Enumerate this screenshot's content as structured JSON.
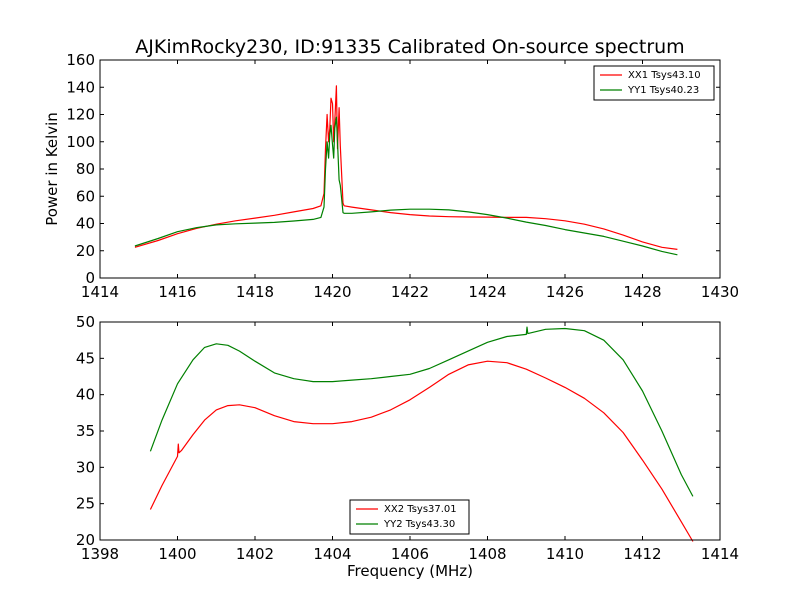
{
  "figure_title": "AJKimRocky230, ID:91335 Calibrated On-source spectrum",
  "chart_data": [
    {
      "type": "line",
      "title": "AJKimRocky230, ID:91335 Calibrated On-source spectrum",
      "xlabel": "",
      "ylabel": "Power in Kelvin",
      "xlim": [
        1414,
        1430
      ],
      "ylim": [
        0,
        160
      ],
      "xticks": [
        1414,
        1416,
        1418,
        1420,
        1422,
        1424,
        1426,
        1428,
        1430
      ],
      "yticks": [
        0,
        20,
        40,
        60,
        80,
        100,
        120,
        140,
        160
      ],
      "legend_position": "top-right",
      "grid": false,
      "series": [
        {
          "name": "XX1 Tsys43.10",
          "color": "#ff0000",
          "x": [
            1414.9,
            1415.5,
            1416.0,
            1416.5,
            1417.0,
            1417.5,
            1418.0,
            1418.5,
            1419.0,
            1419.5,
            1419.7,
            1419.78,
            1419.82,
            1419.86,
            1419.9,
            1419.93,
            1419.96,
            1420.0,
            1420.03,
            1420.06,
            1420.1,
            1420.13,
            1420.17,
            1420.2,
            1420.23,
            1420.27,
            1420.3,
            1420.5,
            1421.0,
            1421.5,
            1422.0,
            1422.5,
            1423.0,
            1423.5,
            1424.0,
            1424.5,
            1425.0,
            1425.5,
            1426.0,
            1426.5,
            1427.0,
            1427.5,
            1428.0,
            1428.5,
            1428.9
          ],
          "y": [
            22.5,
            27.5,
            32.5,
            36.5,
            39.5,
            42.0,
            44.0,
            46.0,
            48.5,
            51.0,
            53.0,
            62.0,
            95.0,
            120.0,
            100.0,
            110.0,
            132.0,
            128.0,
            100.0,
            115.0,
            141.0,
            95.0,
            125.0,
            97.0,
            80.0,
            55.0,
            53.0,
            52.0,
            50.0,
            48.0,
            46.5,
            45.5,
            45.0,
            44.8,
            44.7,
            44.5,
            44.5,
            43.5,
            42.0,
            39.5,
            36.0,
            31.5,
            26.5,
            22.5,
            21.0
          ]
        },
        {
          "name": "YY1 Tsys40.23",
          "color": "#008000",
          "x": [
            1414.9,
            1415.5,
            1416.0,
            1416.5,
            1417.0,
            1417.5,
            1418.0,
            1418.5,
            1419.0,
            1419.5,
            1419.7,
            1419.78,
            1419.82,
            1419.86,
            1419.9,
            1419.93,
            1419.96,
            1420.0,
            1420.03,
            1420.06,
            1420.1,
            1420.13,
            1420.17,
            1420.2,
            1420.23,
            1420.27,
            1420.3,
            1420.5,
            1421.0,
            1421.5,
            1422.0,
            1422.5,
            1423.0,
            1423.5,
            1424.0,
            1424.5,
            1425.0,
            1425.5,
            1426.0,
            1426.5,
            1427.0,
            1427.5,
            1428.0,
            1428.5,
            1428.9
          ],
          "y": [
            23.5,
            29.0,
            34.0,
            37.0,
            39.0,
            39.8,
            40.3,
            40.8,
            41.8,
            43.0,
            44.5,
            52.0,
            80.0,
            100.0,
            88.0,
            105.0,
            112.0,
            98.0,
            88.0,
            110.0,
            118.0,
            100.0,
            72.0,
            68.0,
            60.0,
            48.0,
            47.5,
            47.5,
            48.5,
            49.8,
            50.5,
            50.5,
            50.0,
            48.5,
            46.5,
            44.0,
            41.0,
            38.5,
            35.5,
            33.0,
            30.5,
            27.0,
            23.5,
            19.5,
            17.0
          ]
        }
      ]
    },
    {
      "type": "line",
      "title": "",
      "xlabel": "Frequency (MHz)",
      "ylabel": "",
      "xlim": [
        1398,
        1414
      ],
      "ylim": [
        20,
        50
      ],
      "xticks": [
        1398,
        1400,
        1402,
        1404,
        1406,
        1408,
        1410,
        1412,
        1414
      ],
      "yticks": [
        20,
        25,
        30,
        35,
        40,
        45,
        50
      ],
      "legend_position": "bottom-center",
      "grid": false,
      "series": [
        {
          "name": "XX2 Tsys37.01",
          "color": "#ff0000",
          "x": [
            1399.3,
            1399.6,
            1400.0,
            1400.02,
            1400.04,
            1400.1,
            1400.4,
            1400.7,
            1401.0,
            1401.3,
            1401.6,
            1402.0,
            1402.5,
            1403.0,
            1403.5,
            1404.0,
            1404.5,
            1405.0,
            1405.5,
            1406.0,
            1406.5,
            1407.0,
            1407.5,
            1408.0,
            1408.5,
            1409.0,
            1409.5,
            1410.0,
            1410.5,
            1411.0,
            1411.5,
            1412.0,
            1412.5,
            1413.0,
            1413.3
          ],
          "y": [
            24.2,
            27.5,
            31.5,
            33.2,
            32.0,
            32.3,
            34.5,
            36.5,
            37.9,
            38.5,
            38.6,
            38.2,
            37.1,
            36.3,
            36.0,
            36.0,
            36.3,
            36.9,
            37.9,
            39.3,
            41.0,
            42.8,
            44.1,
            44.6,
            44.4,
            43.5,
            42.3,
            41.0,
            39.5,
            37.5,
            34.8,
            31.0,
            27.0,
            22.5,
            19.8
          ]
        },
        {
          "name": "YY2 Tsys43.30",
          "color": "#008000",
          "x": [
            1399.3,
            1399.6,
            1400.0,
            1400.4,
            1400.7,
            1401.0,
            1401.3,
            1401.6,
            1402.0,
            1402.5,
            1403.0,
            1403.5,
            1404.0,
            1404.5,
            1405.0,
            1405.5,
            1406.0,
            1406.5,
            1407.0,
            1407.5,
            1408.0,
            1408.5,
            1409.0,
            1409.02,
            1409.04,
            1409.5,
            1410.0,
            1410.5,
            1411.0,
            1411.5,
            1412.0,
            1412.5,
            1413.0,
            1413.3
          ],
          "y": [
            32.2,
            36.5,
            41.5,
            44.8,
            46.5,
            47.0,
            46.8,
            46.0,
            44.6,
            43.0,
            42.2,
            41.8,
            41.8,
            42.0,
            42.2,
            42.5,
            42.8,
            43.6,
            44.8,
            46.0,
            47.2,
            48.0,
            48.3,
            49.3,
            48.4,
            49.0,
            49.1,
            48.8,
            47.5,
            44.8,
            40.5,
            35.0,
            29.0,
            26.0
          ]
        }
      ]
    }
  ]
}
